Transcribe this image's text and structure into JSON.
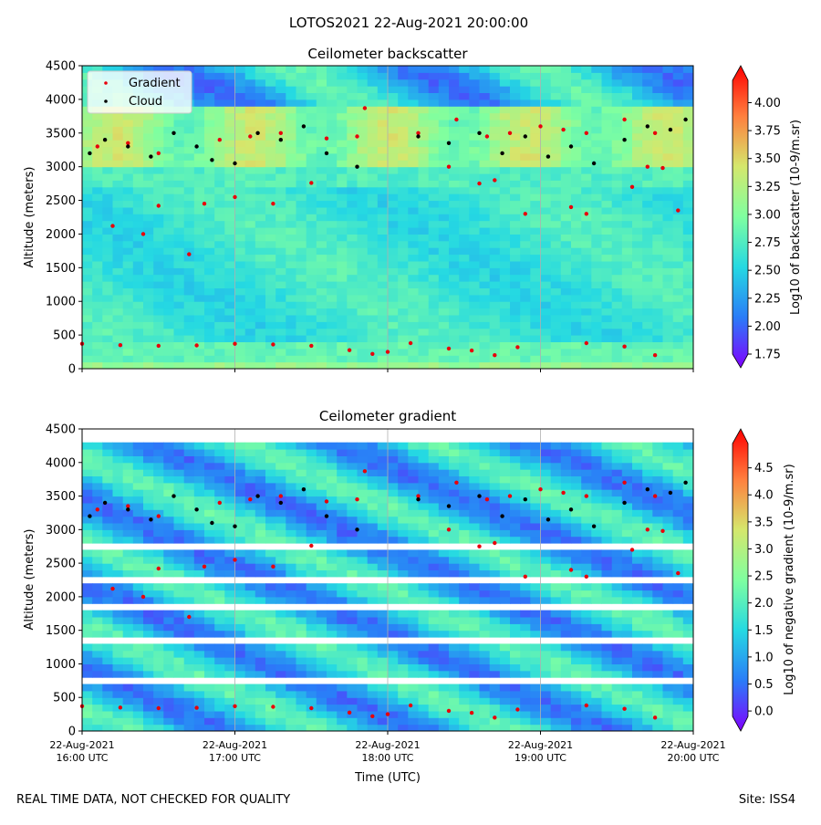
{
  "suptitle": "LOTOS2021 22-Aug-2021 20:00:00",
  "footer": {
    "left": "REAL TIME DATA, NOT CHECKED FOR QUALITY",
    "right": "Site: ISS4"
  },
  "colors": {
    "gradient_marker": "#e8000b",
    "cloud_marker": "#000000",
    "colormap": [
      "#8000ff",
      "#2a7cf8",
      "#25d9e2",
      "#7fffa0",
      "#d5e76c",
      "#ff7f3e",
      "#ff0000"
    ]
  },
  "chart_data": [
    {
      "type": "heatmap",
      "title": "Ceilometer backscatter",
      "xlabel": "",
      "ylabel": "Altitude (meters)",
      "ylim": [
        0,
        4500
      ],
      "yticks": [
        "0",
        "500",
        "1000",
        "1500",
        "2000",
        "2500",
        "3000",
        "3500",
        "4000",
        "4500"
      ],
      "xlim": [
        "22-Aug-2021 16:00 UTC",
        "22-Aug-2021 20:00 UTC"
      ],
      "x_tick_labels_shown": false,
      "grid": "vertical",
      "legend": {
        "placement": "top-left",
        "entries": [
          "Gradient",
          "Cloud"
        ]
      },
      "colorbar": {
        "label": "Log10 of backscatter (10-9/m.sr)",
        "range": [
          1.75,
          4.2
        ],
        "ticks": [
          "1.75",
          "2.00",
          "2.25",
          "2.50",
          "2.75",
          "3.00",
          "3.25",
          "3.50",
          "3.75",
          "4.00"
        ],
        "extend": "both"
      },
      "series": [
        {
          "name": "Gradient",
          "points": [
            [
              0.0,
              370
            ],
            [
              0.25,
              350
            ],
            [
              0.5,
              340
            ],
            [
              0.75,
              345
            ],
            [
              1.0,
              370
            ],
            [
              1.25,
              360
            ],
            [
              1.5,
              340
            ],
            [
              1.75,
              275
            ],
            [
              1.9,
              220
            ],
            [
              2.0,
              250
            ],
            [
              2.15,
              380
            ],
            [
              0.2,
              2120
            ],
            [
              0.4,
              2000
            ],
            [
              0.7,
              1700
            ],
            [
              0.5,
              2420
            ],
            [
              0.8,
              2450
            ],
            [
              1.0,
              2550
            ],
            [
              1.25,
              2450
            ],
            [
              1.5,
              2760
            ],
            [
              1.85,
              3870
            ],
            [
              2.4,
              3000
            ],
            [
              2.6,
              2750
            ],
            [
              2.7,
              2800
            ],
            [
              2.9,
              2300
            ],
            [
              3.2,
              2400
            ],
            [
              3.3,
              2300
            ],
            [
              3.6,
              2700
            ],
            [
              3.7,
              3000
            ],
            [
              3.8,
              2980
            ],
            [
              3.9,
              2350
            ],
            [
              0.1,
              3300
            ],
            [
              0.3,
              3350
            ],
            [
              0.5,
              3200
            ],
            [
              0.9,
              3400
            ],
            [
              1.1,
              3450
            ],
            [
              1.3,
              3500
            ],
            [
              1.6,
              3420
            ],
            [
              1.8,
              3450
            ],
            [
              2.2,
              3500
            ],
            [
              2.45,
              3700
            ],
            [
              2.65,
              3450
            ],
            [
              2.8,
              3500
            ],
            [
              3.0,
              3600
            ],
            [
              3.15,
              3550
            ],
            [
              3.3,
              3500
            ],
            [
              3.55,
              3700
            ],
            [
              3.75,
              3500
            ],
            [
              2.4,
              300
            ],
            [
              2.55,
              270
            ],
            [
              2.7,
              200
            ],
            [
              2.85,
              320
            ],
            [
              3.3,
              380
            ],
            [
              3.55,
              330
            ],
            [
              3.75,
              200
            ]
          ]
        },
        {
          "name": "Cloud",
          "points": [
            [
              0.05,
              3200
            ],
            [
              0.15,
              3400
            ],
            [
              0.3,
              3300
            ],
            [
              0.45,
              3150
            ],
            [
              0.6,
              3500
            ],
            [
              0.75,
              3300
            ],
            [
              0.85,
              3100
            ],
            [
              1.0,
              3050
            ],
            [
              1.15,
              3500
            ],
            [
              1.3,
              3400
            ],
            [
              1.45,
              3600
            ],
            [
              1.6,
              3200
            ],
            [
              1.8,
              3000
            ],
            [
              2.2,
              3450
            ],
            [
              2.4,
              3350
            ],
            [
              2.6,
              3500
            ],
            [
              2.75,
              3200
            ],
            [
              2.9,
              3450
            ],
            [
              3.05,
              3150
            ],
            [
              3.2,
              3300
            ],
            [
              3.35,
              3050
            ],
            [
              3.55,
              3400
            ],
            [
              3.7,
              3600
            ],
            [
              3.85,
              3550
            ],
            [
              3.95,
              3700
            ]
          ]
        }
      ]
    },
    {
      "type": "heatmap",
      "title": "Ceilometer gradient",
      "xlabel": "Time (UTC)",
      "ylabel": "Altitude (meters)",
      "ylim": [
        0,
        4500
      ],
      "yticks": [
        "0",
        "500",
        "1000",
        "1500",
        "2000",
        "2500",
        "3000",
        "3500",
        "4000",
        "4500"
      ],
      "xticks": [
        {
          "line1": "22-Aug-2021",
          "line2": "16:00 UTC"
        },
        {
          "line1": "22-Aug-2021",
          "line2": "17:00 UTC"
        },
        {
          "line1": "22-Aug-2021",
          "line2": "18:00 UTC"
        },
        {
          "line1": "22-Aug-2021",
          "line2": "19:00 UTC"
        },
        {
          "line1": "22-Aug-2021",
          "line2": "20:00 UTC"
        }
      ],
      "grid": "vertical",
      "colorbar": {
        "label": "Log10 of negative gradient (10-9/m.sr)",
        "range": [
          -0.1,
          4.95
        ],
        "ticks": [
          "0.0",
          "0.5",
          "1.0",
          "1.5",
          "2.0",
          "2.5",
          "3.0",
          "3.5",
          "4.0",
          "4.5"
        ],
        "extend": "both"
      },
      "bands_note_alt_ranges": [
        [
          0,
          150
        ],
        [
          250,
          650
        ],
        [
          850,
          1300
        ],
        [
          1400,
          1800
        ],
        [
          1900,
          2200
        ],
        [
          2350,
          2650
        ],
        [
          2800,
          4300
        ]
      ]
    }
  ]
}
